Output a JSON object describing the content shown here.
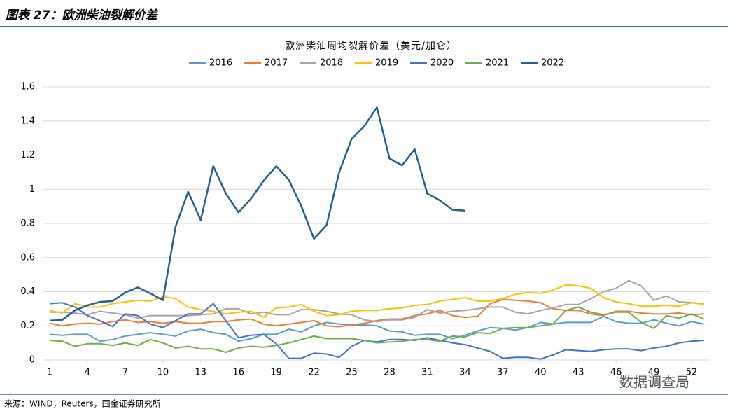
{
  "figure_label": "图表 27：欧洲柴油裂解价差",
  "source": "来源：WIND，Reuters，国金证券研究所",
  "watermark": "数据调查局",
  "chart_data": {
    "type": "line",
    "title": "欧洲柴油周均裂解价差（美元/加仑）",
    "x": [
      1,
      2,
      3,
      4,
      5,
      6,
      7,
      8,
      9,
      10,
      11,
      12,
      13,
      14,
      15,
      16,
      17,
      18,
      19,
      20,
      21,
      22,
      23,
      24,
      25,
      26,
      27,
      28,
      29,
      30,
      31,
      32,
      33,
      34,
      35,
      36,
      37,
      38,
      39,
      40,
      41,
      42,
      43,
      44,
      45,
      46,
      47,
      48,
      49,
      50,
      51,
      52,
      53
    ],
    "xlim": [
      0.5,
      53.5
    ],
    "xticks": [
      1,
      4,
      7,
      10,
      13,
      16,
      19,
      22,
      25,
      28,
      31,
      34,
      37,
      40,
      43,
      46,
      49,
      52
    ],
    "ylim": [
      0,
      1.6
    ],
    "yticks": [
      0,
      0.2,
      0.4,
      0.6,
      0.8,
      1,
      1.2,
      1.4,
      1.6
    ],
    "grid": true,
    "legend": "top",
    "series": [
      {
        "name": "2016",
        "color": "#5b9bd5",
        "values": [
          0.15,
          0.145,
          0.15,
          0.15,
          0.11,
          0.12,
          0.14,
          0.15,
          0.16,
          0.15,
          0.14,
          0.17,
          0.18,
          0.16,
          0.15,
          0.11,
          0.125,
          0.15,
          0.15,
          0.18,
          0.165,
          0.2,
          0.22,
          0.21,
          0.205,
          0.205,
          0.2,
          0.17,
          0.165,
          0.145,
          0.15,
          0.15,
          0.125,
          0.145,
          0.17,
          0.19,
          0.185,
          0.175,
          0.19,
          0.22,
          0.21,
          0.22,
          0.22,
          0.22,
          0.255,
          0.225,
          0.215,
          0.215,
          0.235,
          0.215,
          0.2,
          0.225,
          0.21
        ]
      },
      {
        "name": "2017",
        "color": "#ed7d31",
        "values": [
          0.215,
          0.2,
          0.21,
          0.215,
          0.21,
          0.225,
          0.235,
          0.22,
          0.225,
          0.215,
          0.225,
          0.215,
          0.215,
          0.225,
          0.225,
          0.235,
          0.24,
          0.21,
          0.2,
          0.21,
          0.22,
          0.23,
          0.2,
          0.195,
          0.205,
          0.215,
          0.23,
          0.24,
          0.24,
          0.26,
          0.27,
          0.29,
          0.26,
          0.25,
          0.255,
          0.33,
          0.355,
          0.35,
          0.345,
          0.335,
          0.3,
          0.29,
          0.29,
          0.27,
          0.26,
          0.285,
          0.285,
          0.275,
          0.27,
          0.27,
          0.275,
          0.265,
          0.27
        ]
      },
      {
        "name": "2018",
        "color": "#a5a5a5",
        "values": [
          0.28,
          0.28,
          0.275,
          0.265,
          0.285,
          0.275,
          0.265,
          0.245,
          0.26,
          0.26,
          0.26,
          0.26,
          0.265,
          0.27,
          0.3,
          0.3,
          0.27,
          0.28,
          0.265,
          0.265,
          0.295,
          0.295,
          0.285,
          0.27,
          0.265,
          0.235,
          0.225,
          0.235,
          0.235,
          0.25,
          0.295,
          0.275,
          0.285,
          0.29,
          0.3,
          0.31,
          0.31,
          0.28,
          0.27,
          0.29,
          0.305,
          0.325,
          0.325,
          0.36,
          0.4,
          0.42,
          0.465,
          0.435,
          0.35,
          0.375,
          0.34,
          0.335,
          0.33
        ]
      },
      {
        "name": "2019",
        "color": "#ffc000",
        "values": [
          0.29,
          0.275,
          0.33,
          0.31,
          0.31,
          0.33,
          0.34,
          0.35,
          0.345,
          0.37,
          0.36,
          0.31,
          0.295,
          0.285,
          0.27,
          0.28,
          0.285,
          0.25,
          0.305,
          0.31,
          0.325,
          0.285,
          0.26,
          0.265,
          0.285,
          0.29,
          0.29,
          0.3,
          0.305,
          0.32,
          0.325,
          0.345,
          0.355,
          0.365,
          0.345,
          0.345,
          0.36,
          0.385,
          0.395,
          0.39,
          0.41,
          0.44,
          0.435,
          0.42,
          0.365,
          0.34,
          0.33,
          0.315,
          0.315,
          0.32,
          0.315,
          0.335,
          0.325
        ]
      },
      {
        "name": "2020",
        "color": "#4472c4",
        "values": [
          0.33,
          0.335,
          0.31,
          0.26,
          0.23,
          0.195,
          0.27,
          0.26,
          0.21,
          0.19,
          0.23,
          0.27,
          0.27,
          0.33,
          0.23,
          0.13,
          0.145,
          0.15,
          0.095,
          0.01,
          0.01,
          0.04,
          0.035,
          0.015,
          0.08,
          0.115,
          0.105,
          0.12,
          0.12,
          0.115,
          0.13,
          0.115,
          0.1,
          0.09,
          0.07,
          0.05,
          0.01,
          0.015,
          0.015,
          0.005,
          0.03,
          0.06,
          0.055,
          0.05,
          0.06,
          0.065,
          0.065,
          0.055,
          0.07,
          0.08,
          0.1,
          0.11,
          0.115
        ]
      },
      {
        "name": "2021",
        "color": "#70ad47",
        "values": [
          0.115,
          0.11,
          0.08,
          0.095,
          0.095,
          0.085,
          0.1,
          0.085,
          0.12,
          0.1,
          0.07,
          0.08,
          0.065,
          0.065,
          0.045,
          0.07,
          0.08,
          0.075,
          0.085,
          0.1,
          0.12,
          0.14,
          0.125,
          0.125,
          0.125,
          0.115,
          0.1,
          0.105,
          0.11,
          0.12,
          0.12,
          0.11,
          0.14,
          0.135,
          0.16,
          0.155,
          0.185,
          0.19,
          0.19,
          0.2,
          0.21,
          0.29,
          0.31,
          0.28,
          0.265,
          0.28,
          0.28,
          0.22,
          0.185,
          0.26,
          0.245,
          0.27,
          0.24
        ]
      },
      {
        "name": "2022",
        "color": "#255e91",
        "values": [
          0.23,
          0.235,
          0.29,
          0.32,
          0.34,
          0.345,
          0.395,
          0.425,
          0.39,
          0.35,
          0.78,
          0.985,
          0.82,
          1.135,
          0.975,
          0.865,
          0.945,
          1.05,
          1.135,
          1.055,
          0.9,
          0.71,
          0.79,
          1.1,
          1.295,
          1.37,
          1.48,
          1.18,
          1.14,
          1.235,
          0.975,
          0.935,
          0.88,
          0.875,
          null,
          null,
          null,
          null,
          null,
          null,
          null,
          null,
          null,
          null,
          null,
          null,
          null,
          null,
          null,
          null,
          null,
          null,
          null
        ]
      }
    ]
  }
}
